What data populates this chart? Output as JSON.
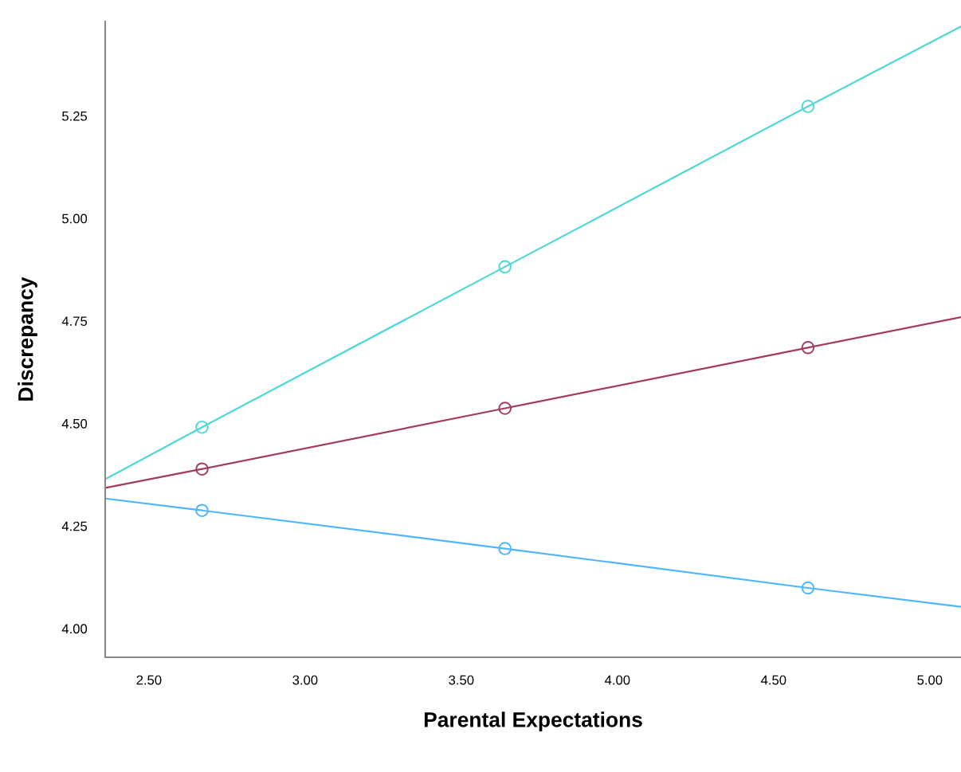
{
  "chart_data": {
    "type": "scatter",
    "xlabel": "Parental Expectations",
    "ylabel": "Discrepancy",
    "x": [
      2.36,
      2.67,
      3.64,
      4.61,
      5.1
    ],
    "series": [
      {
        "type": "line",
        "color": "#4fd8d8",
        "values": [
          4.364,
          4.491,
          4.882,
          5.273,
          5.468
        ],
        "marker": "none"
      },
      {
        "type": "line",
        "color": "#a33a62",
        "values": [
          4.343,
          4.389,
          4.537,
          4.685,
          4.759
        ],
        "marker": "none"
      },
      {
        "type": "line",
        "color": "#4db6ff",
        "values": [
          4.317,
          4.288,
          4.195,
          4.099,
          4.053
        ],
        "marker": "none"
      },
      {
        "color": "#4fd8d8",
        "values": [
          null,
          4.491,
          4.882,
          5.273,
          null
        ]
      },
      {
        "color": "#a33a62",
        "values": [
          null,
          4.389,
          4.537,
          4.685,
          null
        ]
      },
      {
        "color": "#4db6ff",
        "values": [
          null,
          4.288,
          4.195,
          4.099,
          null
        ]
      }
    ],
    "marker": "circle",
    "grid": false,
    "legend": false,
    "xlim": [
      2.36,
      5.1
    ],
    "xticks": [
      {
        "value": 2.5,
        "label": "2.50"
      },
      {
        "value": 3.0,
        "label": "3.00"
      },
      {
        "value": 3.5,
        "label": "3.50"
      },
      {
        "value": 4.0,
        "label": "4.00"
      },
      {
        "value": 4.5,
        "label": "4.50"
      },
      {
        "value": 5.0,
        "label": "5.00"
      }
    ],
    "ylim": [
      3.93,
      5.48
    ],
    "yticks": [
      {
        "value": 4.0,
        "label": "4.00"
      },
      {
        "value": 4.25,
        "label": "4.25"
      },
      {
        "value": 4.5,
        "label": "4.50"
      },
      {
        "value": 4.75,
        "label": "4.75"
      },
      {
        "value": 5.0,
        "label": "5.00"
      },
      {
        "value": 5.25,
        "label": "5.25"
      }
    ]
  }
}
